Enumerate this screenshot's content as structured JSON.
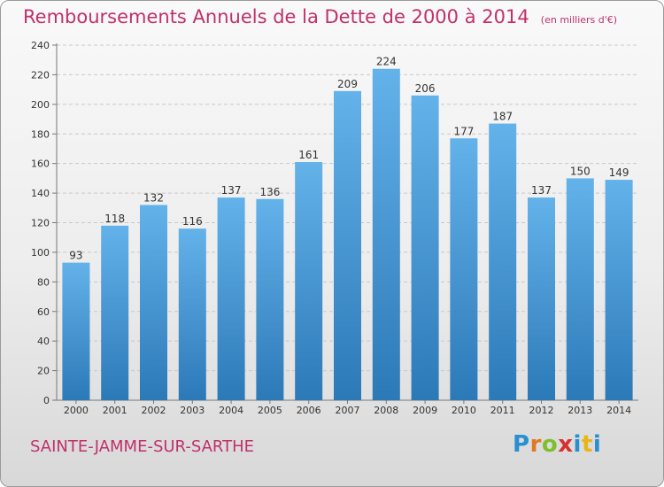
{
  "title": "Remboursements Annuels de la Dette de 2000 à 2014",
  "subtitle": "(en milliers d'€)",
  "commune": "SAINTE-JAMME-SUR-SARTHE",
  "logo": {
    "text": "Proxiti",
    "colors": [
      "#2a8fd0",
      "#e07a22",
      "#7fbf2a",
      "#d6312e",
      "#2a8fd0",
      "#e9b516",
      "#2a8fd0"
    ]
  },
  "colors": {
    "accent": "#c0306a",
    "bar_top": "#64b2ea",
    "bar_bottom": "#2c79b8"
  },
  "chart_data": {
    "type": "bar",
    "categories": [
      "2000",
      "2001",
      "2002",
      "2003",
      "2004",
      "2005",
      "2006",
      "2007",
      "2008",
      "2009",
      "2010",
      "2011",
      "2012",
      "2013",
      "2014"
    ],
    "values": [
      93,
      118,
      132,
      116,
      137,
      136,
      161,
      209,
      224,
      206,
      177,
      187,
      137,
      150,
      149
    ],
    "ylim": [
      0,
      240
    ],
    "yticks": [
      0,
      20,
      40,
      60,
      80,
      100,
      120,
      140,
      160,
      180,
      200,
      220,
      240
    ],
    "grid": true
  }
}
